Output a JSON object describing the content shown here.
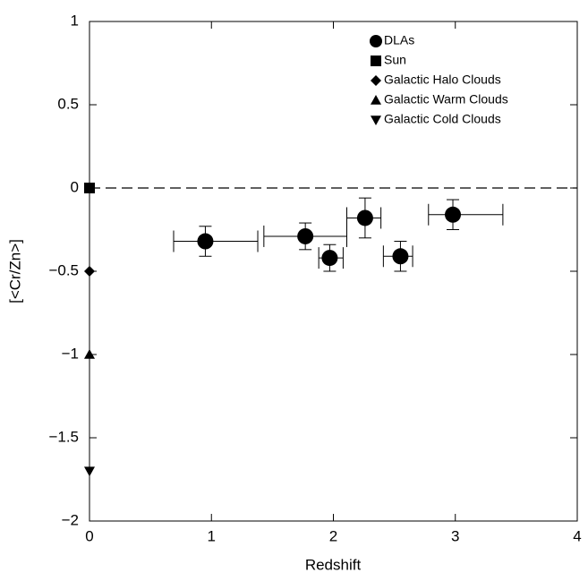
{
  "chart_data": {
    "type": "scatter",
    "xlabel": "Redshift",
    "ylabel": "[<Cr/Zn>]",
    "xlim": [
      0,
      4
    ],
    "ylim": [
      -2,
      1
    ],
    "xticks": [
      0,
      1,
      2,
      3,
      4
    ],
    "yticks": [
      {
        "value": -2,
        "label": "−2"
      },
      {
        "value": -1.5,
        "label": "−1.5"
      },
      {
        "value": -1,
        "label": "−1"
      },
      {
        "value": -0.5,
        "label": "−0.5"
      },
      0,
      0.5,
      1
    ],
    "hline": 0,
    "legend": "top-right",
    "series": [
      {
        "name": "DLAs",
        "marker": "circle",
        "color": "#000000",
        "x": [
          0.95,
          1.77,
          1.97,
          2.26,
          2.55,
          2.98
        ],
        "values": [
          -0.32,
          -0.29,
          -0.42,
          -0.18,
          -0.41,
          -0.16
        ],
        "xerr_minus": [
          0.26,
          0.34,
          0.09,
          0.15,
          0.14,
          0.2
        ],
        "xerr_plus": [
          0.43,
          0.34,
          0.11,
          0.13,
          0.1,
          0.41
        ],
        "yerr": [
          0.09,
          0.08,
          0.08,
          0.12,
          0.09,
          0.09
        ]
      },
      {
        "name": "Sun",
        "marker": "square",
        "color": "#000000",
        "x": [
          0
        ],
        "values": [
          0
        ]
      },
      {
        "name": "Galactic Halo Clouds",
        "marker": "diamond",
        "color": "#000000",
        "x": [
          0
        ],
        "values": [
          -0.5
        ]
      },
      {
        "name": "Galactic Warm Clouds",
        "marker": "triangle-up",
        "color": "#000000",
        "x": [
          0
        ],
        "values": [
          -1
        ]
      },
      {
        "name": "Galactic Cold Clouds",
        "marker": "triangle-down",
        "color": "#000000",
        "x": [
          0
        ],
        "values": [
          -1.7
        ]
      }
    ]
  }
}
